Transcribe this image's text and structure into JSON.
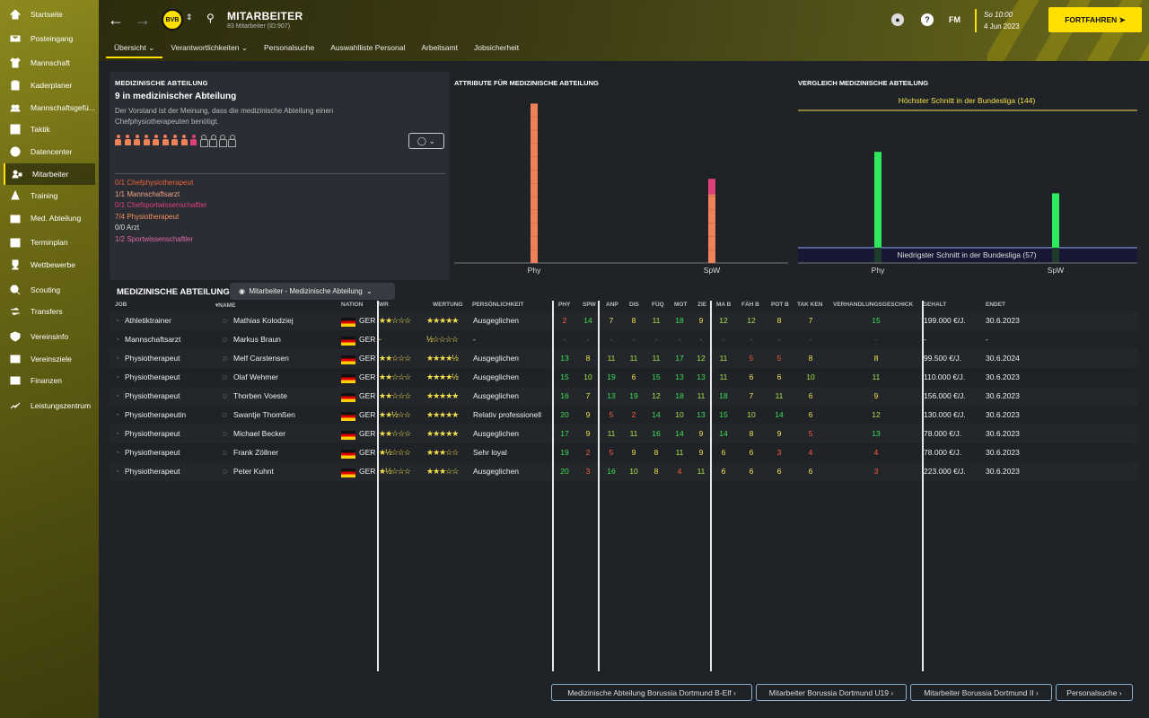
{
  "sidebar": {
    "items": [
      {
        "label": "Startseite",
        "icon": "home-icon"
      },
      {
        "label": "Posteingang",
        "icon": "inbox-icon"
      },
      {
        "label": "Mannschaft",
        "icon": "shirt-icon"
      },
      {
        "label": "Kaderplaner",
        "icon": "clipboard-icon"
      },
      {
        "label": "Mannschaftsgefü...",
        "icon": "group-icon"
      },
      {
        "label": "Taktik",
        "icon": "tactics-icon"
      },
      {
        "label": "Datencenter",
        "icon": "data-icon"
      },
      {
        "label": "Mitarbeiter",
        "icon": "staff-icon"
      },
      {
        "label": "Training",
        "icon": "cone-icon"
      },
      {
        "label": "Med. Abteilung",
        "icon": "medical-icon"
      },
      {
        "label": "Terminplan",
        "icon": "calendar-icon"
      },
      {
        "label": "Wettbewerbe",
        "icon": "trophy-icon"
      },
      {
        "label": "Scouting",
        "icon": "scouting-icon"
      },
      {
        "label": "Transfers",
        "icon": "transfer-icon"
      },
      {
        "label": "Vereinsinfo",
        "icon": "shield-icon"
      },
      {
        "label": "Vereinsziele",
        "icon": "goals-icon"
      },
      {
        "label": "Finanzen",
        "icon": "finance-icon"
      },
      {
        "label": "Leistungszentrum",
        "icon": "academy-icon"
      }
    ]
  },
  "header": {
    "title": "MITARBEITER",
    "subtitle": "83 Mitarbeiter (ID:907)",
    "club_crest": "BVB",
    "tabs": [
      "Übersicht",
      "Verantwortlichkeiten",
      "Personalsuche",
      "Auswahlliste Personal",
      "Arbeitsamt",
      "Jobsicherheit"
    ],
    "date_line1": "So 10:00",
    "date_line2": "4 Jun 2023",
    "continue_label": "FORTFAHREN",
    "fm_label": "FM",
    "help_label": "?"
  },
  "medical": {
    "heading": "MEDIZINISCHE ABTEILUNG",
    "title": "9 in medizinischer Abteilung",
    "description": "Der Vorstand ist der Meinung, dass die medizinische Abteilung einen Chefphysiotherapeuten benötigt.",
    "roles": [
      {
        "text": "0/1 Chefphysiotherapeut",
        "color": "#e8623a"
      },
      {
        "text": "1/1 Mannschaftsarzt",
        "color": "#f0a28a"
      },
      {
        "text": "0/1 Chefsportwissenschaftler",
        "color": "#e0407a"
      },
      {
        "text": "7/4 Physiotherapeut",
        "color": "#f49060"
      },
      {
        "text": "0/0 Arzt",
        "color": "#dddddd"
      },
      {
        "text": "1/2 Sportwissenschaftler",
        "color": "#e06aa8"
      }
    ],
    "people_colors": [
      "#f0825a",
      "#f0825a",
      "#f0825a",
      "#f0825a",
      "#f0825a",
      "#f0825a",
      "#f0825a",
      "#f0825a",
      "#e0407a",
      "empty",
      "empty",
      "empty",
      "empty"
    ]
  },
  "chart_data": [
    {
      "type": "bar",
      "title": "ATTRIBUTE FÜR MEDIZINISCHE ABTEILUNG",
      "categories": [
        "Phy",
        "SpW"
      ],
      "series": [
        {
          "values": [
            144,
            76
          ]
        }
      ],
      "highlight": [
        {
          "category": "SpW",
          "value": 14,
          "color": "#e0407a"
        }
      ],
      "bar_color": "#f0825a"
    },
    {
      "type": "bar",
      "title": "VERGLEICH MEDIZINISCHE ABTEILUNG",
      "categories": [
        "Phy",
        "SpW"
      ],
      "series": [
        {
          "values": [
            111,
            72
          ]
        }
      ],
      "bar_color": "#2ee860",
      "max_label": "Höchster Schnitt in der Bundesliga (144)",
      "max_value": 144,
      "min_label": "Niedrigster Schnitt in der Bundesliga (57)",
      "min_value": 57,
      "ylim": [
        0,
        150
      ]
    }
  ],
  "table": {
    "section_title": "MEDIZINISCHE ABTEILUNG",
    "view_select": "Mitarbeiter - Medizinische Abteilung",
    "columns": [
      "JOB",
      "NAME",
      "NATION",
      "WR",
      "WERTUNG",
      "PERSÖNLICHKEIT",
      "PHY",
      "SPW",
      "ANP",
      "DIS",
      "FÜQ",
      "MOT",
      "ZIE",
      "MA B",
      "FÄH B",
      "POT B",
      "TAK KEN",
      "VERHANDLUNGSGESCHICK",
      "GEHALT",
      "ENDET"
    ],
    "rows": [
      {
        "job": "Athletiktrainer",
        "name": "Mathias Kolodziej",
        "nation": "GER",
        "wr": "★★☆☆☆",
        "wertung": "★★★★★",
        "pers": "Ausgeglichen",
        "stats": [
          "2",
          "14",
          "7",
          "8",
          "11",
          "18",
          "9",
          "12",
          "12",
          "8",
          "7",
          "15"
        ],
        "gehalt": "199.000 €/J.",
        "endet": "30.6.2023"
      },
      {
        "job": "Mannschaftsarzt",
        "name": "Markus Braun",
        "nation": "GER",
        "wr": "-",
        "wertung": "½☆☆☆☆",
        "pers": "-",
        "stats": [
          "-",
          "-",
          "-",
          "-",
          "-",
          "-",
          "-",
          "-",
          "-",
          "-",
          "-",
          "-"
        ],
        "gehalt": "-",
        "endet": "-"
      },
      {
        "job": "Physiotherapeut",
        "name": "Melf Carstensen",
        "nation": "GER",
        "wr": "★★☆☆☆",
        "wertung": "★★★★½",
        "pers": "Ausgeglichen",
        "stats": [
          "13",
          "8",
          "11",
          "11",
          "11",
          "17",
          "12",
          "11",
          "5",
          "5",
          "8",
          "8"
        ],
        "gehalt": "99.500 €/J.",
        "endet": "30.6.2024"
      },
      {
        "job": "Physiotherapeut",
        "name": "Olaf Wehmer",
        "nation": "GER",
        "wr": "★★☆☆☆",
        "wertung": "★★★★½",
        "pers": "Ausgeglichen",
        "stats": [
          "15",
          "10",
          "19",
          "6",
          "15",
          "13",
          "13",
          "11",
          "6",
          "6",
          "10",
          "11"
        ],
        "gehalt": "110.000 €/J.",
        "endet": "30.6.2023"
      },
      {
        "job": "Physiotherapeut",
        "name": "Thorben Voeste",
        "nation": "GER",
        "wr": "★★☆☆☆",
        "wertung": "★★★★★",
        "pers": "Ausgeglichen",
        "stats": [
          "16",
          "7",
          "13",
          "19",
          "12",
          "18",
          "11",
          "18",
          "7",
          "11",
          "6",
          "9"
        ],
        "gehalt": "156.000 €/J.",
        "endet": "30.6.2023"
      },
      {
        "job": "Physiotherapeutin",
        "name": "Swantje Thomßen",
        "nation": "GER",
        "wr": "★★½☆☆",
        "wertung": "★★★★★",
        "pers": "Relativ professionell",
        "stats": [
          "20",
          "9",
          "5",
          "2",
          "14",
          "10",
          "13",
          "15",
          "10",
          "14",
          "6",
          "12"
        ],
        "gehalt": "130.000 €/J.",
        "endet": "30.6.2023"
      },
      {
        "job": "Physiotherapeut",
        "name": "Michael Becker",
        "nation": "GER",
        "wr": "★★☆☆☆",
        "wertung": "★★★★★",
        "pers": "Ausgeglichen",
        "stats": [
          "17",
          "9",
          "11",
          "11",
          "16",
          "14",
          "9",
          "14",
          "8",
          "9",
          "5",
          "13"
        ],
        "gehalt": "78.000 €/J.",
        "endet": "30.6.2023"
      },
      {
        "job": "Physiotherapeut",
        "name": "Frank Zöllner",
        "nation": "GER",
        "wr": "★½☆☆☆",
        "wertung": "★★★☆☆",
        "pers": "Sehr loyal",
        "stats": [
          "19",
          "2",
          "5",
          "9",
          "8",
          "11",
          "9",
          "6",
          "6",
          "3",
          "4",
          "4"
        ],
        "gehalt": "78.000 €/J.",
        "endet": "30.6.2023"
      },
      {
        "job": "Physiotherapeut",
        "name": "Peter Kuhnt",
        "nation": "GER",
        "wr": "★½☆☆☆",
        "wertung": "★★★☆☆",
        "pers": "Ausgeglichen",
        "stats": [
          "20",
          "3",
          "16",
          "10",
          "8",
          "4",
          "11",
          "6",
          "6",
          "6",
          "6",
          "3"
        ],
        "gehalt": "223.000 €/J.",
        "endet": "30.6.2023"
      }
    ]
  },
  "footer": {
    "buttons": [
      "Medizinische Abteilung Borussia Dortmund B-Elf",
      "Mitarbeiter Borussia Dortmund U19",
      "Mitarbeiter Borussia Dortmund II",
      "Personalsuche"
    ]
  },
  "colors": {
    "accent": "#ffe000",
    "high": "#3de052",
    "mid": "#f5e04a",
    "low": "#ff5a3c"
  }
}
